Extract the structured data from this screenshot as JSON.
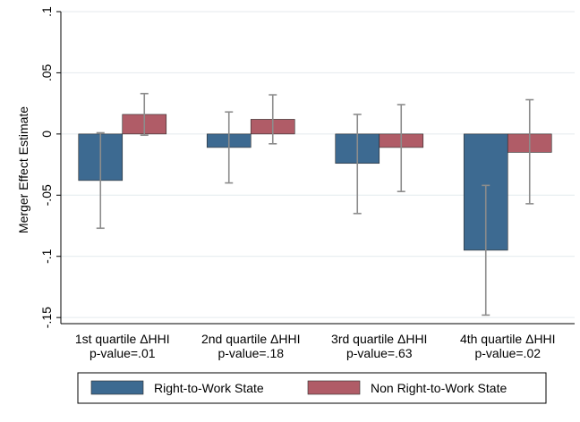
{
  "chart_data": {
    "type": "bar",
    "ylabel": "Merger Effect Estimate",
    "ylim": [
      -0.155,
      0.1
    ],
    "yticks": [
      0.1,
      0.05,
      0,
      -0.05,
      -0.1,
      -0.15
    ],
    "ytick_labels": [
      ".1",
      ".05",
      "0",
      "-.05",
      "-.1",
      "-.15"
    ],
    "categories": [
      {
        "line1": "1st quartile ΔHHI",
        "line2": "p-value=.01"
      },
      {
        "line1": "2nd quartile ΔHHI",
        "line2": "p-value=.18"
      },
      {
        "line1": "3rd quartile ΔHHI",
        "line2": "p-value=.63"
      },
      {
        "line1": "4th quartile ΔHHI",
        "line2": "p-value=.02"
      }
    ],
    "series": [
      {
        "name": "Right-to-Work State",
        "color": "#3d6a91",
        "values": [
          -0.038,
          -0.011,
          -0.024,
          -0.095
        ],
        "ci_low": [
          -0.077,
          -0.04,
          -0.065,
          -0.148
        ],
        "ci_high": [
          0.001,
          0.018,
          0.016,
          -0.042
        ]
      },
      {
        "name": "Non Right-to-Work State",
        "color": "#b05c67",
        "values": [
          0.016,
          0.012,
          -0.011,
          -0.015
        ],
        "ci_low": [
          -0.001,
          -0.008,
          -0.047,
          -0.057
        ],
        "ci_high": [
          0.033,
          0.032,
          0.024,
          0.028
        ]
      }
    ],
    "grid": true,
    "legend_position": "bottom"
  }
}
